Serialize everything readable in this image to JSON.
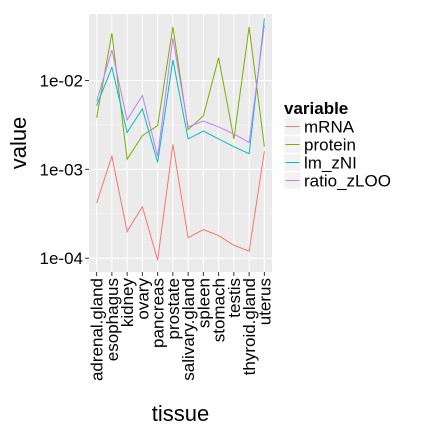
{
  "chart_data": {
    "type": "line",
    "xlabel": "tissue",
    "ylabel": "value",
    "y_scale": "log10",
    "ylim": [
      7e-05,
      0.008
    ],
    "y_ticks": [
      {
        "value": 0.0001,
        "label": "1e-04"
      },
      {
        "value": 0.001,
        "label": "1e-03"
      },
      {
        "value": 0.01,
        "label": "1e-02"
      }
    ],
    "grid": true,
    "background": "#ebebeb",
    "categories": [
      "adrenal.gland",
      "esophagus",
      "kidney",
      "ovary",
      "pancreas",
      "prostate",
      "salivary.gland",
      "spleen",
      "stomach",
      "testis",
      "thyroid.gland",
      "uterus"
    ],
    "legend": {
      "title": "variable",
      "position": "right"
    },
    "series": [
      {
        "name": "mRNA",
        "color": "#f8766d",
        "values": [
          0.00042,
          0.0014,
          0.0002,
          0.00038,
          9.5e-05,
          0.0019,
          0.00017,
          0.00021,
          0.00018,
          0.00014,
          0.00012,
          0.0016
        ]
      },
      {
        "name": "protein",
        "color": "#7cae00",
        "values": [
          0.0038,
          0.034,
          0.0013,
          0.0024,
          0.0031,
          0.04,
          0.0028,
          0.004,
          0.018,
          0.0022,
          0.04,
          0.0018
        ]
      },
      {
        "name": "lm_zNI",
        "color": "#00bfc4",
        "values": [
          0.0052,
          0.014,
          0.0026,
          0.0048,
          0.0012,
          0.017,
          0.0022,
          0.0027,
          0.0022,
          0.0018,
          0.0015,
          0.05
        ]
      },
      {
        "name": "ratio_zLOO",
        "color": "#c77cff",
        "values": [
          0.0058,
          0.022,
          0.0036,
          0.0068,
          0.0014,
          0.03,
          0.003,
          0.0035,
          0.003,
          0.0025,
          0.002,
          0.042
        ]
      }
    ]
  }
}
